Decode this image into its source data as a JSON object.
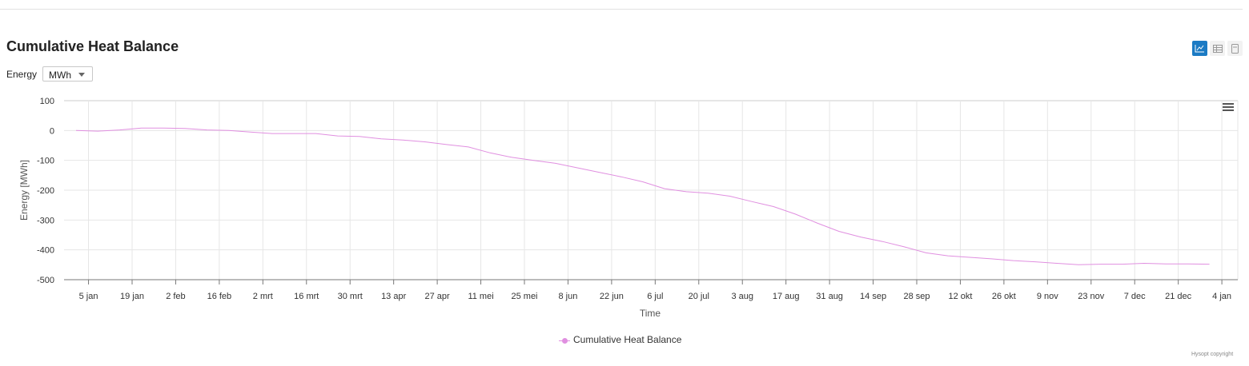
{
  "header": {
    "title": "Cumulative Heat Balance",
    "energy_label": "Energy",
    "unit_value": "MWh"
  },
  "view_buttons": {
    "chart_icon": "line-chart-icon",
    "table_icon": "table-icon",
    "export_icon": "document-icon"
  },
  "chart_menu_icon": "hamburger-menu-icon",
  "credits": "Hysopt copyright",
  "colors": {
    "series": "#e08fe0",
    "accent": "#1c7bc4",
    "grid": "#e6e6e6"
  },
  "chart_data": {
    "type": "line",
    "title": "",
    "xlabel": "Time",
    "ylabel": "Energy [MWh]",
    "ylim": [
      -500,
      100
    ],
    "yticks": [
      100,
      0,
      -100,
      -200,
      -300,
      -400,
      -500
    ],
    "grid": true,
    "legend_position": "bottom-center",
    "x_tick_labels": [
      "5 jan",
      "19 jan",
      "2 feb",
      "16 feb",
      "2 mrt",
      "16 mrt",
      "30 mrt",
      "13 apr",
      "27 apr",
      "11 mei",
      "25 mei",
      "8 jun",
      "22 jun",
      "6 jul",
      "20 jul",
      "3 aug",
      "17 aug",
      "31 aug",
      "14 sep",
      "28 sep",
      "12 okt",
      "26 okt",
      "9 nov",
      "23 nov",
      "7 dec",
      "21 dec",
      "4 jan"
    ],
    "series": [
      {
        "name": "Cumulative Heat Balance",
        "x": [
          "1 jan",
          "8 jan",
          "15 jan",
          "22 jan",
          "29 jan",
          "5 feb",
          "12 feb",
          "19 feb",
          "26 feb",
          "5 mrt",
          "12 mrt",
          "19 mrt",
          "26 mrt",
          "2 apr",
          "9 apr",
          "16 apr",
          "23 apr",
          "30 apr",
          "7 mei",
          "14 mei",
          "21 mei",
          "28 mei",
          "4 jun",
          "11 jun",
          "18 jun",
          "25 jun",
          "2 jul",
          "9 jul",
          "16 jul",
          "23 jul",
          "30 jul",
          "6 aug",
          "13 aug",
          "20 aug",
          "27 aug",
          "3 sep",
          "10 sep",
          "17 sep",
          "24 sep",
          "1 okt",
          "8 okt",
          "15 okt",
          "22 okt",
          "29 okt",
          "5 nov",
          "12 nov",
          "19 nov",
          "26 nov",
          "3 dec",
          "10 dec",
          "17 dec",
          "24 dec",
          "31 dec"
        ],
        "values": [
          0,
          -2,
          2,
          8,
          8,
          7,
          2,
          0,
          -5,
          -10,
          -10,
          -10,
          -18,
          -20,
          -28,
          -32,
          -38,
          -47,
          -55,
          -75,
          -90,
          -100,
          -110,
          -125,
          -140,
          -155,
          -172,
          -195,
          -205,
          -210,
          -220,
          -238,
          -255,
          -280,
          -310,
          -338,
          -357,
          -372,
          -390,
          -410,
          -420,
          -425,
          -430,
          -436,
          -440,
          -445,
          -450,
          -448,
          -448,
          -445,
          -447,
          -447,
          -448
        ]
      }
    ]
  }
}
